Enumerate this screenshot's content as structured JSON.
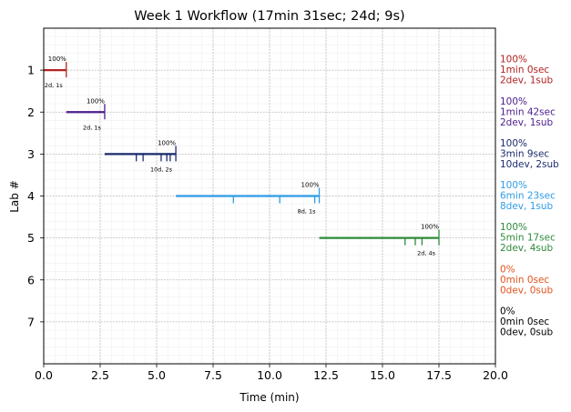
{
  "chart_data": {
    "type": "timeline",
    "title": "Week 1 Workflow (17min 31sec; 24d; 9s)",
    "xlabel": "Time (min)",
    "ylabel": "Lab #",
    "xlim": [
      0,
      20
    ],
    "ylim": [
      8,
      0
    ],
    "x_ticks": [
      "0.0",
      "2.5",
      "5.0",
      "7.5",
      "10.0",
      "12.5",
      "15.0",
      "17.5",
      "20.0"
    ],
    "y_ticks": [
      "1",
      "2",
      "3",
      "4",
      "5",
      "6",
      "7"
    ],
    "grid": true,
    "series": [
      {
        "lab": 1,
        "color": "#b22222",
        "start": 0.0,
        "end": 1.0,
        "marks": [
          1.0
        ],
        "pct_label": "100%",
        "count_label": "2d, 1s",
        "summary": [
          "100%",
          "1min 0sec",
          "2dev, 1sub"
        ]
      },
      {
        "lab": 2,
        "color": "#4b1d8c",
        "start": 1.0,
        "end": 2.7,
        "marks": [
          2.7
        ],
        "pct_label": "100%",
        "count_label": "2d, 1s",
        "summary": [
          "100%",
          "1min 42sec",
          "2dev, 1sub"
        ]
      },
      {
        "lab": 3,
        "color": "#1a2a6c",
        "start": 2.7,
        "end": 5.85,
        "marks": [
          4.1,
          4.4,
          5.2,
          5.45,
          5.6,
          5.85
        ],
        "pct_label": "100%",
        "count_label": "10d, 2s",
        "summary": [
          "100%",
          "3min 9sec",
          "10dev, 2sub"
        ]
      },
      {
        "lab": 4,
        "color": "#2f9be6",
        "start": 5.85,
        "end": 12.2,
        "marks": [
          8.4,
          10.45,
          12.0,
          12.2
        ],
        "pct_label": "100%",
        "count_label": "8d, 1s",
        "summary": [
          "100%",
          "6min 23sec",
          "8dev, 1sub"
        ]
      },
      {
        "lab": 5,
        "color": "#2e8b3a",
        "start": 12.2,
        "end": 17.5,
        "marks": [
          16.0,
          16.45,
          16.75,
          17.5
        ],
        "pct_label": "100%",
        "count_label": "2d, 4s",
        "summary": [
          "100%",
          "5min 17sec",
          "2dev, 4sub"
        ]
      },
      {
        "lab": 6,
        "color": "#e0531c",
        "summary": [
          "0%",
          "0min 0sec",
          "0dev, 0sub"
        ]
      },
      {
        "lab": 7,
        "color": "#000000",
        "summary": [
          "0%",
          "0min 0sec",
          "0dev, 0sub"
        ]
      }
    ]
  }
}
